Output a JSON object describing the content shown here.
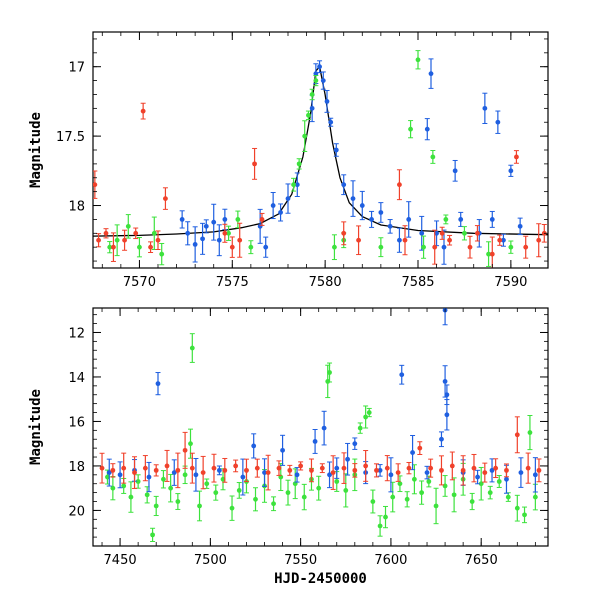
{
  "chart_data": [
    {
      "type": "scatter",
      "title": "",
      "ylabel": "Magnitude",
      "xlabel": "",
      "xlim": [
        7567.5,
        7592
      ],
      "ylim": [
        18.45,
        16.75
      ],
      "y_inverted": true,
      "x_ticks": [
        7570,
        7575,
        7580,
        7585,
        7590
      ],
      "x_tick_labels": [
        "7570",
        "7575",
        "7580",
        "7585",
        "7590"
      ],
      "y_ticks": [
        17,
        17.5,
        18
      ],
      "y_tick_labels": [
        "17",
        "17.5",
        "18"
      ],
      "colors": {
        "blue": "#1f5fe0",
        "green": "#3de23d",
        "red": "#f0412b",
        "curve": "#000000"
      },
      "model_curve": [
        [
          7567.5,
          18.22
        ],
        [
          7570,
          18.215
        ],
        [
          7572,
          18.205
        ],
        [
          7574,
          18.19
        ],
        [
          7575.5,
          18.16
        ],
        [
          7576.5,
          18.13
        ],
        [
          7577.5,
          18.06
        ],
        [
          7578.2,
          17.92
        ],
        [
          7578.8,
          17.65
        ],
        [
          7579.2,
          17.35
        ],
        [
          7579.5,
          17.03
        ],
        [
          7579.7,
          17.0
        ],
        [
          7580.0,
          17.2
        ],
        [
          7580.4,
          17.55
        ],
        [
          7580.8,
          17.8
        ],
        [
          7581.3,
          17.98
        ],
        [
          7582,
          18.08
        ],
        [
          7583,
          18.14
        ],
        [
          7585,
          18.18
        ],
        [
          7588,
          18.2
        ],
        [
          7592,
          18.21
        ]
      ],
      "series": [
        {
          "name": "",
          "color": "blue",
          "points": [
            [
              7572.3,
              18.1
            ],
            [
              7572.6,
              18.2
            ],
            [
              7573.0,
              18.28
            ],
            [
              7573.4,
              18.24
            ],
            [
              7573.6,
              18.15
            ],
            [
              7574.0,
              18.12
            ],
            [
              7574.3,
              18.25
            ],
            [
              7574.6,
              18.1
            ],
            [
              7576.5,
              18.15
            ],
            [
              7576.8,
              18.3
            ],
            [
              7577.2,
              18.0
            ],
            [
              7577.6,
              18.05
            ],
            [
              7578.0,
              17.95
            ],
            [
              7578.5,
              17.85
            ],
            [
              7579.3,
              17.3
            ],
            [
              7579.5,
              17.05
            ],
            [
              7579.7,
              17.0
            ],
            [
              7579.9,
              17.1
            ],
            [
              7580.1,
              17.25
            ],
            [
              7580.3,
              17.4
            ],
            [
              7580.6,
              17.6
            ],
            [
              7581.0,
              17.85
            ],
            [
              7581.5,
              17.95
            ],
            [
              7582.0,
              18.0
            ],
            [
              7582.5,
              18.1
            ],
            [
              7583.0,
              18.05
            ],
            [
              7583.5,
              18.15
            ],
            [
              7584.0,
              18.25
            ],
            [
              7584.5,
              18.1
            ],
            [
              7585.2,
              18.2
            ],
            [
              7585.5,
              17.45
            ],
            [
              7585.7,
              17.05
            ],
            [
              7586.0,
              18.2
            ],
            [
              7586.4,
              18.3
            ],
            [
              7587.0,
              17.75
            ],
            [
              7587.3,
              18.1
            ],
            [
              7588.3,
              18.2
            ],
            [
              7588.6,
              17.3
            ],
            [
              7589.0,
              18.1
            ],
            [
              7589.3,
              17.4
            ],
            [
              7589.6,
              18.25
            ],
            [
              7590.0,
              17.75
            ],
            [
              7590.5,
              18.15
            ]
          ]
        },
        {
          "name": "",
          "color": "green",
          "points": [
            [
              7568.4,
              18.3
            ],
            [
              7568.8,
              18.25
            ],
            [
              7569.4,
              18.15
            ],
            [
              7570.0,
              18.3
            ],
            [
              7570.8,
              18.2
            ],
            [
              7571.2,
              18.35
            ],
            [
              7574.8,
              18.2
            ],
            [
              7575.3,
              18.1
            ],
            [
              7576.0,
              18.3
            ],
            [
              7578.3,
              17.85
            ],
            [
              7578.6,
              17.7
            ],
            [
              7578.9,
              17.5
            ],
            [
              7579.1,
              17.35
            ],
            [
              7579.3,
              17.2
            ],
            [
              7579.5,
              17.1
            ],
            [
              7580.5,
              18.3
            ],
            [
              7581.0,
              18.25
            ],
            [
              7583.0,
              18.3
            ],
            [
              7584.6,
              17.45
            ],
            [
              7585.0,
              16.95
            ],
            [
              7585.3,
              18.3
            ],
            [
              7585.8,
              17.65
            ],
            [
              7586.5,
              18.1
            ],
            [
              7587.5,
              18.2
            ],
            [
              7588.8,
              18.35
            ],
            [
              7590.0,
              18.3
            ]
          ]
        },
        {
          "name": "",
          "color": "red",
          "points": [
            [
              7567.6,
              17.85
            ],
            [
              7567.8,
              18.25
            ],
            [
              7568.2,
              18.2
            ],
            [
              7568.6,
              18.3
            ],
            [
              7569.2,
              18.25
            ],
            [
              7569.8,
              18.2
            ],
            [
              7570.2,
              17.32
            ],
            [
              7570.6,
              18.3
            ],
            [
              7571.0,
              18.25
            ],
            [
              7571.4,
              17.95
            ],
            [
              7574.6,
              18.2
            ],
            [
              7575.0,
              18.3
            ],
            [
              7575.4,
              18.25
            ],
            [
              7576.2,
              17.7
            ],
            [
              7576.6,
              18.1
            ],
            [
              7581.0,
              18.2
            ],
            [
              7581.8,
              18.25
            ],
            [
              7584.0,
              17.85
            ],
            [
              7584.3,
              18.25
            ],
            [
              7585.9,
              18.3
            ],
            [
              7586.3,
              18.2
            ],
            [
              7586.7,
              18.25
            ],
            [
              7587.8,
              18.3
            ],
            [
              7588.2,
              18.2
            ],
            [
              7589.0,
              18.35
            ],
            [
              7589.4,
              18.25
            ],
            [
              7590.3,
              17.65
            ],
            [
              7590.8,
              18.3
            ],
            [
              7591.5,
              18.25
            ],
            [
              7591.8,
              18.2
            ]
          ]
        }
      ]
    },
    {
      "type": "scatter",
      "title": "",
      "ylabel": "Magnitude",
      "xlabel": "HJD-2450000",
      "xlim": [
        7435,
        7687
      ],
      "ylim": [
        21.6,
        10.9
      ],
      "y_inverted": true,
      "x_ticks": [
        7450,
        7500,
        7550,
        7600,
        7650
      ],
      "x_tick_labels": [
        "7450",
        "7500",
        "7550",
        "7600",
        "7650"
      ],
      "y_ticks": [
        12,
        14,
        16,
        18,
        20
      ],
      "y_tick_labels": [
        "12",
        "14",
        "16",
        "18",
        "20"
      ],
      "colors": {
        "blue": "#1f5fe0",
        "green": "#3de23d",
        "red": "#f0412b"
      },
      "series": [
        {
          "name": "",
          "color": "green",
          "points": [
            [
              7443,
              18.5
            ],
            [
              7446,
              19.0
            ],
            [
              7452,
              18.9
            ],
            [
              7456,
              19.4
            ],
            [
              7460,
              18.7
            ],
            [
              7465,
              19.3
            ],
            [
              7468,
              21.1
            ],
            [
              7470,
              19.8
            ],
            [
              7474,
              18.6
            ],
            [
              7478,
              19.0
            ],
            [
              7482,
              19.6
            ],
            [
              7486,
              18.4
            ],
            [
              7489,
              17.0
            ],
            [
              7490,
              12.7
            ],
            [
              7494,
              19.8
            ],
            [
              7498,
              18.8
            ],
            [
              7503,
              19.2
            ],
            [
              7507,
              18.6
            ],
            [
              7512,
              19.9
            ],
            [
              7516,
              19.1
            ],
            [
              7520,
              18.7
            ],
            [
              7525,
              19.5
            ],
            [
              7530,
              18.9
            ],
            [
              7535,
              19.7
            ],
            [
              7539,
              18.5
            ],
            [
              7543,
              19.2
            ],
            [
              7547,
              18.8
            ],
            [
              7552,
              19.4
            ],
            [
              7556,
              18.6
            ],
            [
              7560,
              19.0
            ],
            [
              7565,
              14.2
            ],
            [
              7566,
              13.8
            ],
            [
              7570,
              18.7
            ],
            [
              7575,
              19.1
            ],
            [
              7580,
              18.4
            ],
            [
              7583,
              16.3
            ],
            [
              7586,
              15.8
            ],
            [
              7588,
              15.6
            ],
            [
              7590,
              19.6
            ],
            [
              7594,
              20.7
            ],
            [
              7597,
              20.3
            ],
            [
              7601,
              19.4
            ],
            [
              7605,
              18.8
            ],
            [
              7609,
              19.5
            ],
            [
              7613,
              18.6
            ],
            [
              7617,
              19.2
            ],
            [
              7621,
              18.7
            ],
            [
              7625,
              19.8
            ],
            [
              7630,
              18.9
            ],
            [
              7635,
              19.3
            ],
            [
              7640,
              18.6
            ],
            [
              7645,
              19.6
            ],
            [
              7650,
              18.8
            ],
            [
              7655,
              19.2
            ],
            [
              7660,
              18.7
            ],
            [
              7665,
              19.4
            ],
            [
              7670,
              19.9
            ],
            [
              7674,
              20.2
            ],
            [
              7677,
              16.5
            ],
            [
              7680,
              19.4
            ]
          ]
        },
        {
          "name": "",
          "color": "blue",
          "points": [
            [
              7444,
              18.3
            ],
            [
              7450,
              18.4
            ],
            [
              7458,
              18.2
            ],
            [
              7466,
              18.5
            ],
            [
              7471,
              14.3
            ],
            [
              7480,
              18.3
            ],
            [
              7492,
              18.4
            ],
            [
              7505,
              18.2
            ],
            [
              7518,
              18.5
            ],
            [
              7524,
              17.1
            ],
            [
              7530,
              18.3
            ],
            [
              7540,
              17.3
            ],
            [
              7548,
              18.4
            ],
            [
              7558,
              16.9
            ],
            [
              7563,
              16.3
            ],
            [
              7566,
              18.4
            ],
            [
              7570,
              18.1
            ],
            [
              7576,
              17.7
            ],
            [
              7580,
              17.0
            ],
            [
              7586,
              18.3
            ],
            [
              7594,
              18.2
            ],
            [
              7600,
              18.4
            ],
            [
              7606,
              13.9
            ],
            [
              7612,
              17.4
            ],
            [
              7620,
              18.3
            ],
            [
              7628,
              16.8
            ],
            [
              7630,
              11.0
            ],
            [
              7630,
              14.2
            ],
            [
              7631,
              14.8
            ],
            [
              7631,
              15.7
            ],
            [
              7640,
              18.3
            ],
            [
              7648,
              18.5
            ],
            [
              7656,
              18.2
            ],
            [
              7664,
              18.6
            ],
            [
              7672,
              18.3
            ],
            [
              7680,
              18.4
            ]
          ]
        },
        {
          "name": "",
          "color": "red",
          "points": [
            [
              7440,
              18.1
            ],
            [
              7446,
              18.2
            ],
            [
              7452,
              18.1
            ],
            [
              7458,
              18.3
            ],
            [
              7464,
              18.1
            ],
            [
              7470,
              18.2
            ],
            [
              7476,
              18.0
            ],
            [
              7482,
              18.2
            ],
            [
              7486,
              17.3
            ],
            [
              7490,
              18.1
            ],
            [
              7496,
              18.3
            ],
            [
              7502,
              18.1
            ],
            [
              7508,
              18.2
            ],
            [
              7514,
              18.0
            ],
            [
              7520,
              18.2
            ],
            [
              7526,
              18.1
            ],
            [
              7532,
              18.3
            ],
            [
              7538,
              18.1
            ],
            [
              7544,
              18.2
            ],
            [
              7550,
              18.0
            ],
            [
              7556,
              18.2
            ],
            [
              7562,
              18.1
            ],
            [
              7568,
              18.3
            ],
            [
              7574,
              18.1
            ],
            [
              7580,
              18.2
            ],
            [
              7586,
              18.0
            ],
            [
              7592,
              18.2
            ],
            [
              7598,
              18.1
            ],
            [
              7604,
              18.3
            ],
            [
              7610,
              18.1
            ],
            [
              7616,
              17.2
            ],
            [
              7622,
              18.1
            ],
            [
              7628,
              18.2
            ],
            [
              7634,
              18.0
            ],
            [
              7640,
              18.2
            ],
            [
              7646,
              18.1
            ],
            [
              7652,
              18.3
            ],
            [
              7658,
              18.1
            ],
            [
              7664,
              18.2
            ],
            [
              7670,
              16.6
            ],
            [
              7676,
              18.1
            ],
            [
              7682,
              18.2
            ]
          ]
        }
      ]
    }
  ]
}
